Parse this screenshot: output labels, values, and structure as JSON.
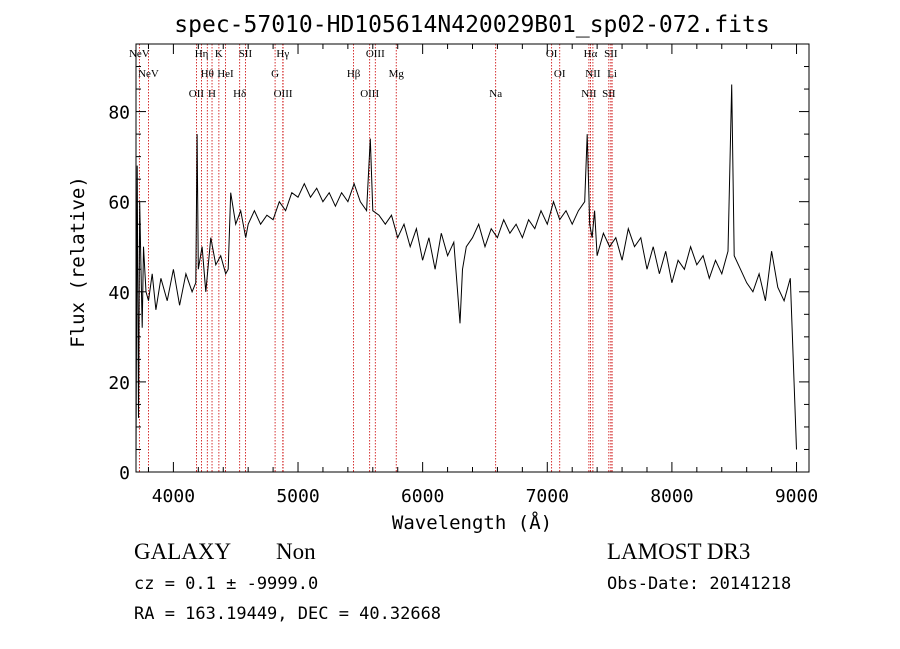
{
  "chart_data": {
    "type": "line",
    "title": "spec-57010-HD105614N420029B01_sp02-072.fits",
    "xlabel": "Wavelength (Å)",
    "ylabel": "Flux (relative)",
    "xlim": [
      3700,
      9100
    ],
    "ylim": [
      0,
      95
    ],
    "xticks": [
      4000,
      5000,
      6000,
      7000,
      8000,
      9000
    ],
    "yticks": [
      0,
      20,
      40,
      60,
      80
    ],
    "grid": false,
    "series": [
      {
        "x": [
          3700,
          3710,
          3720,
          3730,
          3740,
          3750,
          3760,
          3780,
          3800,
          3830,
          3860,
          3900,
          3950,
          4000,
          4050,
          4100,
          4150,
          4180,
          4190,
          4200,
          4230,
          4260,
          4300,
          4340,
          4380,
          4420,
          4440,
          4460,
          4500,
          4540,
          4580,
          4600,
          4650,
          4700,
          4750,
          4800,
          4850,
          4900,
          4950,
          5000,
          5050,
          5100,
          5150,
          5200,
          5250,
          5300,
          5350,
          5400,
          5450,
          5500,
          5550,
          5580,
          5600,
          5650,
          5700,
          5750,
          5800,
          5850,
          5900,
          5950,
          6000,
          6050,
          6100,
          6150,
          6200,
          6250,
          6300,
          6320,
          6350,
          6400,
          6450,
          6500,
          6550,
          6600,
          6650,
          6700,
          6750,
          6800,
          6850,
          6900,
          6950,
          7000,
          7050,
          7100,
          7150,
          7200,
          7250,
          7300,
          7320,
          7340,
          7360,
          7380,
          7400,
          7450,
          7500,
          7550,
          7600,
          7650,
          7700,
          7750,
          7800,
          7850,
          7900,
          7950,
          8000,
          8050,
          8100,
          8150,
          8200,
          8250,
          8300,
          8350,
          8400,
          8450,
          8480,
          8500,
          8550,
          8600,
          8650,
          8700,
          8750,
          8800,
          8850,
          8900,
          8950,
          9000
        ],
        "y": [
          3,
          68,
          12,
          60,
          45,
          32,
          50,
          40,
          38,
          44,
          36,
          43,
          38,
          45,
          37,
          44,
          40,
          42,
          75,
          45,
          50,
          40,
          52,
          46,
          48,
          44,
          45,
          62,
          55,
          58,
          52,
          55,
          58,
          55,
          57,
          56,
          60,
          58,
          62,
          61,
          64,
          61,
          63,
          60,
          62,
          59,
          62,
          60,
          64,
          60,
          58,
          74,
          58,
          57,
          55,
          57,
          52,
          55,
          50,
          54,
          47,
          52,
          45,
          53,
          48,
          51,
          33,
          45,
          50,
          52,
          55,
          50,
          54,
          52,
          56,
          53,
          55,
          52,
          56,
          54,
          58,
          55,
          60,
          56,
          58,
          55,
          58,
          60,
          75,
          55,
          52,
          58,
          48,
          53,
          50,
          52,
          47,
          54,
          50,
          52,
          45,
          50,
          44,
          49,
          42,
          47,
          45,
          50,
          46,
          48,
          43,
          47,
          44,
          49,
          86,
          48,
          45,
          42,
          40,
          44,
          38,
          49,
          41,
          38,
          43,
          5
        ]
      }
    ],
    "line_markers": [
      {
        "name": "NeV",
        "wl": 3727
      },
      {
        "name": "NeV",
        "wl": 3800
      },
      {
        "name": "OII",
        "wl": 4185
      },
      {
        "name": "Hη",
        "wl": 4226
      },
      {
        "name": "Hθ",
        "wl": 4272
      },
      {
        "name": "H",
        "wl": 4310
      },
      {
        "name": "K",
        "wl": 4365
      },
      {
        "name": "HeI",
        "wl": 4418
      },
      {
        "name": "Hδ",
        "wl": 4532
      },
      {
        "name": "SII",
        "wl": 4578
      },
      {
        "name": "G",
        "wl": 4816
      },
      {
        "name": "OIII",
        "wl": 4880
      },
      {
        "name": "Hγ",
        "wl": 4878
      },
      {
        "name": "Hβ",
        "wl": 5446
      },
      {
        "name": "OIII",
        "wl": 5575
      },
      {
        "name": "OIII",
        "wl": 5620
      },
      {
        "name": "Mg",
        "wl": 5788
      },
      {
        "name": "Na",
        "wl": 6586
      },
      {
        "name": "OI",
        "wl": 7035
      },
      {
        "name": "OI",
        "wl": 7100
      },
      {
        "name": "NII",
        "wl": 7334
      },
      {
        "name": "Hα",
        "wl": 7347
      },
      {
        "name": "NII",
        "wl": 7366
      },
      {
        "name": "SII",
        "wl": 7494
      },
      {
        "name": "SII",
        "wl": 7510
      },
      {
        "name": "Li",
        "wl": 7520
      }
    ]
  },
  "info": {
    "class": "GALAXY",
    "subclass": "Non",
    "survey": "LAMOST DR3",
    "cz": "cz = 0.1 ± -9999.0",
    "obs_date": "Obs-Date: 20141218",
    "radec": "RA = 163.19449, DEC =  40.32668"
  },
  "colors": {
    "spectrum": "#000000",
    "marker": "#cc0000"
  }
}
